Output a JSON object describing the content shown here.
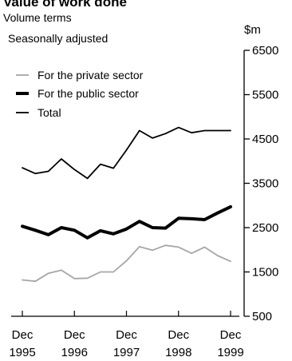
{
  "chart_data": {
    "type": "line",
    "title": "Value of work done",
    "subtitle_line1": "Volume terms",
    "subtitle_line2": "Seasonally adjusted",
    "ylabel": "$m",
    "ylim": [
      500,
      6500
    ],
    "yticks": [
      "6500",
      "5500",
      "4500",
      "3500",
      "2500",
      "1500",
      "500"
    ],
    "yticks_values": [
      6500,
      5500,
      4500,
      3500,
      2500,
      1500,
      500
    ],
    "x_tick_labels": [
      {
        "month": "Dec",
        "year": "1995",
        "quarter_index": 0
      },
      {
        "month": "Dec",
        "year": "1996",
        "quarter_index": 4
      },
      {
        "month": "Dec",
        "year": "1997",
        "quarter_index": 8
      },
      {
        "month": "Dec",
        "year": "1998",
        "quarter_index": 12
      },
      {
        "month": "Dec",
        "year": "1999",
        "quarter_index": 16
      }
    ],
    "x": [
      "Dec 1995",
      "Mar 1996",
      "Jun 1996",
      "Sep 1996",
      "Dec 1996",
      "Mar 1997",
      "Jun 1997",
      "Sep 1997",
      "Dec 1997",
      "Mar 1998",
      "Jun 1998",
      "Sep 1998",
      "Dec 1998",
      "Mar 1999",
      "Jun 1999",
      "Sep 1999",
      "Dec 1999"
    ],
    "legend_position": "top-left",
    "grid": false,
    "series": [
      {
        "name": "For the private sector",
        "color": "#a6a6a6",
        "line_style": "thin",
        "values": [
          1320,
          1290,
          1470,
          1540,
          1350,
          1360,
          1500,
          1500,
          1750,
          2070,
          1990,
          2100,
          2060,
          1920,
          2060,
          1870,
          1740
        ]
      },
      {
        "name": "For the public sector",
        "color": "#000000",
        "line_style": "thick",
        "values": [
          2530,
          2440,
          2340,
          2500,
          2440,
          2270,
          2430,
          2360,
          2470,
          2640,
          2500,
          2490,
          2710,
          2700,
          2680,
          2830,
          2970
        ]
      },
      {
        "name": "Total",
        "color": "#000000",
        "line_style": "thin",
        "values": [
          3850,
          3720,
          3770,
          4050,
          3810,
          3610,
          3930,
          3840,
          4250,
          4690,
          4520,
          4620,
          4760,
          4640,
          4690,
          4690,
          4690
        ]
      }
    ]
  }
}
